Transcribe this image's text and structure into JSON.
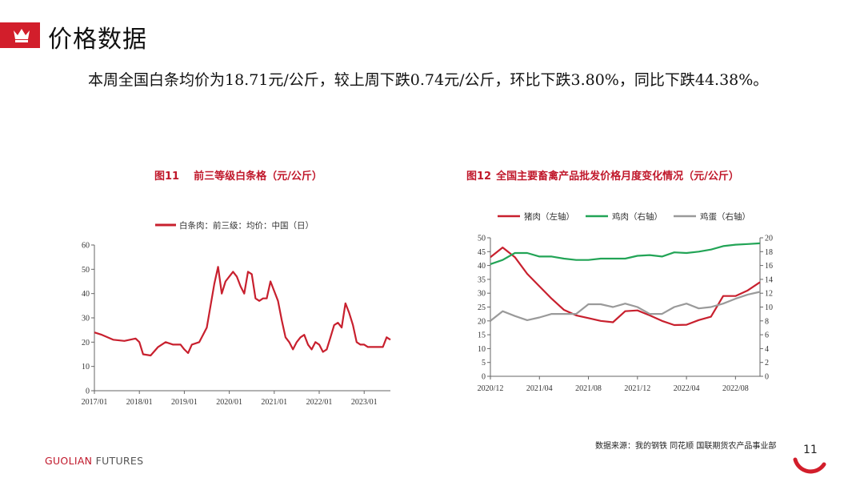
{
  "header": {
    "title": "价格数据"
  },
  "body": {
    "paragraph": "本周全国白条均价为18.71元/公斤，较上周下跌0.74元/公斤，环比下跌3.80%，同比下跌44.38%。"
  },
  "colors": {
    "accent": "#d21e2b",
    "pork": "#c8202e",
    "chicken": "#22a456",
    "egg": "#9a9a9a"
  },
  "icons": {
    "header": "crown-icon"
  },
  "figures": [
    {
      "number": "图11",
      "title": "前三等级白条格（元/公斤）"
    },
    {
      "number": "图12",
      "title": "全国主要畜禽产品批发价格月度变化情况（元/公斤）"
    }
  ],
  "chart_data": [
    {
      "type": "line",
      "legend": [
        "白条肉：前三级：均价：中国（日）"
      ],
      "legend_position": "top",
      "x_ticks": [
        "2017/01",
        "2018/01",
        "2019/01",
        "2020/01",
        "2021/01",
        "2022/01",
        "2023/01"
      ],
      "y_ticks": [
        0,
        10,
        20,
        30,
        40,
        50,
        60
      ],
      "ylim": [
        0,
        60
      ],
      "grid": false,
      "series": [
        {
          "name": "白条肉：前三级：均价：中国（日）",
          "x": [
            "2017/01",
            "2017/03",
            "2017/06",
            "2017/09",
            "2017/12",
            "2018/01",
            "2018/02",
            "2018/04",
            "2018/06",
            "2018/08",
            "2018/10",
            "2018/12",
            "2019/01",
            "2019/02",
            "2019/03",
            "2019/05",
            "2019/07",
            "2019/08",
            "2019/09",
            "2019/10",
            "2019/11",
            "2019/12",
            "2020/01",
            "2020/02",
            "2020/03",
            "2020/04",
            "2020/05",
            "2020/06",
            "2020/07",
            "2020/08",
            "2020/09",
            "2020/10",
            "2020/11",
            "2020/12",
            "2021/01",
            "2021/02",
            "2021/03",
            "2021/04",
            "2021/05",
            "2021/06",
            "2021/07",
            "2021/08",
            "2021/09",
            "2021/10",
            "2021/11",
            "2021/12",
            "2022/01",
            "2022/02",
            "2022/03",
            "2022/04",
            "2022/05",
            "2022/06",
            "2022/07",
            "2022/08",
            "2022/09",
            "2022/10",
            "2022/11",
            "2022/12",
            "2023/01",
            "2023/02",
            "2023/03",
            "2023/04",
            "2023/05",
            "2023/06",
            "2023/07",
            "2023/08"
          ],
          "values": [
            24,
            23,
            21,
            20.5,
            21.5,
            20,
            15,
            14.5,
            18,
            20,
            19,
            19,
            17,
            15.5,
            19,
            20,
            26,
            35,
            44,
            51,
            40,
            45,
            47,
            49,
            47,
            43,
            40,
            49,
            48,
            38,
            37,
            38,
            38,
            45,
            41,
            37,
            29,
            22,
            20,
            17,
            20,
            22,
            23,
            19,
            17,
            20,
            19,
            16,
            17,
            22,
            27,
            28,
            26,
            36,
            32,
            27,
            20,
            19,
            19,
            18,
            18,
            18,
            18,
            18,
            22,
            21
          ]
        }
      ]
    },
    {
      "type": "line",
      "legend": [
        "猪肉（左轴）",
        "鸡肉（右轴）",
        "鸡蛋（右轴）"
      ],
      "legend_position": "top",
      "x_ticks": [
        "2020/12",
        "2021/04",
        "2021/08",
        "2021/12",
        "2022/04",
        "2022/08"
      ],
      "x": [
        "2020/12",
        "2021/01",
        "2021/02",
        "2021/03",
        "2021/04",
        "2021/05",
        "2021/06",
        "2021/07",
        "2021/08",
        "2021/09",
        "2021/10",
        "2021/11",
        "2021/12",
        "2022/01",
        "2022/02",
        "2022/03",
        "2022/04",
        "2022/05",
        "2022/06",
        "2022/07",
        "2022/08",
        "2022/09",
        "2022/10"
      ],
      "left_axis": {
        "ticks": [
          0,
          5,
          10,
          15,
          20,
          25,
          30,
          35,
          40,
          45,
          50
        ],
        "ylim": [
          0,
          50
        ]
      },
      "right_axis": {
        "ticks": [
          0,
          2,
          4,
          6,
          8,
          10,
          12,
          14,
          16,
          18,
          20
        ],
        "ylim": [
          0,
          20
        ]
      },
      "grid": false,
      "series": [
        {
          "name": "猪肉（左轴）",
          "axis": "left",
          "values": [
            43,
            46.5,
            43,
            37,
            32.5,
            28,
            24,
            22,
            21,
            20,
            19.5,
            23.5,
            23.8,
            22,
            20,
            18.5,
            18.6,
            20.3,
            21.5,
            29,
            29,
            31,
            34
          ]
        },
        {
          "name": "鸡肉（右轴）",
          "axis": "right",
          "values": [
            16.2,
            16.8,
            17.8,
            17.8,
            17.3,
            17.3,
            17,
            16.8,
            16.8,
            17,
            17,
            17,
            17.4,
            17.5,
            17.3,
            17.9,
            17.8,
            18,
            18.3,
            18.8,
            19,
            19.1,
            19.2
          ]
        },
        {
          "name": "鸡蛋（右轴）",
          "axis": "right",
          "values": [
            8,
            9.4,
            8.7,
            8.1,
            8.5,
            9,
            9,
            9,
            10.4,
            10.4,
            10,
            10.5,
            10,
            9,
            9,
            10,
            10.5,
            9.8,
            10,
            10.5,
            11.2,
            11.8,
            12.2
          ]
        }
      ]
    }
  ],
  "footer": {
    "source": "数据来源：我的钢铁  同花顺  国联期货农产品事业部",
    "logo_brand": "GUOLIAN",
    "logo_word": "FUTURES",
    "page_number": "11"
  }
}
